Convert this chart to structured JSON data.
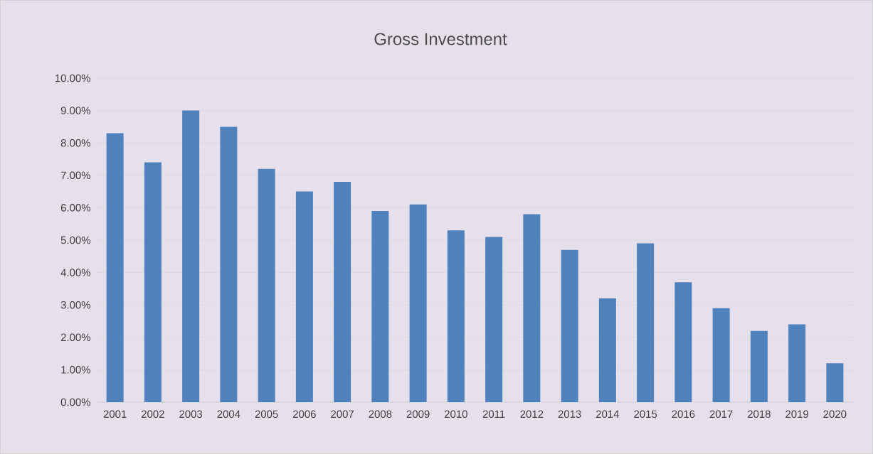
{
  "chart_data": {
    "type": "bar",
    "title": "Gross Investment",
    "categories": [
      "2001",
      "2002",
      "2003",
      "2004",
      "2005",
      "2006",
      "2007",
      "2008",
      "2009",
      "2010",
      "2011",
      "2012",
      "2013",
      "2014",
      "2015",
      "2016",
      "2017",
      "2018",
      "2019",
      "2020"
    ],
    "values": [
      8.3,
      7.4,
      9.0,
      8.5,
      7.2,
      6.5,
      6.8,
      5.9,
      6.1,
      5.3,
      5.1,
      5.8,
      4.7,
      3.2,
      4.9,
      3.7,
      2.9,
      2.2,
      2.4,
      1.2
    ],
    "color": "#4f81bd",
    "ylim": [
      0,
      10
    ],
    "yticks": [
      {
        "value": 0,
        "label": "0.00%"
      },
      {
        "value": 1,
        "label": "1.00%"
      },
      {
        "value": 2,
        "label": "2.00%"
      },
      {
        "value": 3,
        "label": "3.00%"
      },
      {
        "value": 4,
        "label": "4.00%"
      },
      {
        "value": 5,
        "label": "5.00%"
      },
      {
        "value": 6,
        "label": "6.00%"
      },
      {
        "value": 7,
        "label": "7.00%"
      },
      {
        "value": 8,
        "label": "8.00%"
      },
      {
        "value": 9,
        "label": "9.00%"
      },
      {
        "value": 10,
        "label": "10.00%"
      }
    ],
    "grid": "y"
  }
}
